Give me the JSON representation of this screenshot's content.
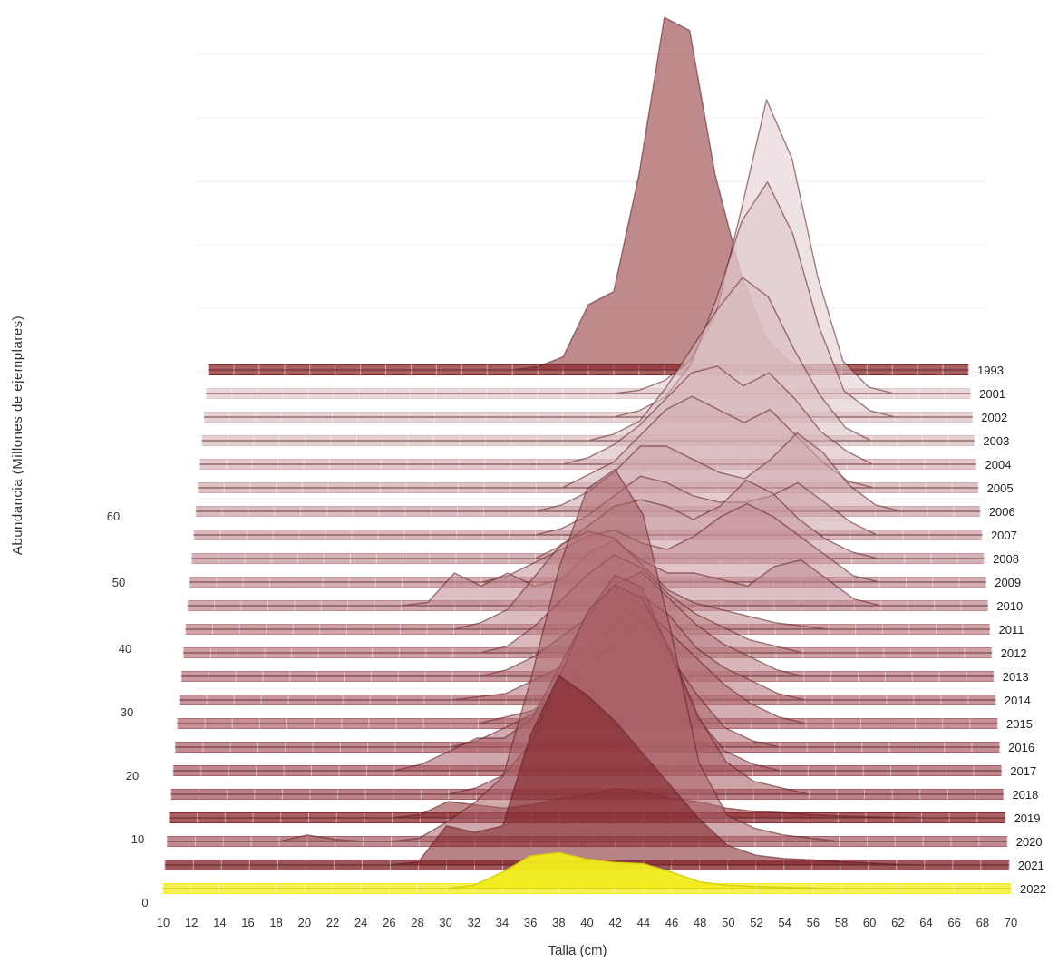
{
  "chart_data": {
    "type": "area",
    "title": "",
    "xlabel": "Talla (cm)",
    "ylabel": "Abundancia  (Millones de ejemplares)",
    "x": [
      10,
      12,
      14,
      16,
      18,
      20,
      22,
      24,
      26,
      28,
      30,
      32,
      34,
      36,
      38,
      40,
      42,
      44,
      46,
      48,
      50,
      52,
      54,
      56,
      58,
      60,
      62,
      64,
      66,
      68,
      70
    ],
    "x_ticks": [
      "10",
      "12",
      "14",
      "16",
      "18",
      "20",
      "22",
      "24",
      "26",
      "28",
      "30",
      "32",
      "34",
      "36",
      "38",
      "40",
      "42",
      "44",
      "46",
      "48",
      "50",
      "52",
      "54",
      "56",
      "58",
      "60",
      "62",
      "64",
      "66",
      "68",
      "70"
    ],
    "y_ticks": [
      "0",
      "10",
      "20",
      "30",
      "40",
      "50",
      "60"
    ],
    "xlim": [
      10,
      70
    ],
    "ylim": [
      0,
      60
    ],
    "grid": false,
    "legend": "none",
    "series": [
      {
        "name": "1993",
        "color": "#8b2a2e",
        "values": [
          0,
          0,
          0,
          0,
          0,
          0,
          0,
          0,
          0,
          0,
          0,
          0,
          0,
          0.5,
          2,
          10,
          12,
          30,
          54,
          52,
          30,
          15,
          5,
          1,
          0,
          0,
          0,
          0,
          0,
          0,
          0
        ]
      },
      {
        "name": "2001",
        "color": "#e2cbcd",
        "values": [
          0,
          0,
          0,
          0,
          0,
          0,
          0,
          0,
          0,
          0,
          0,
          0,
          0,
          0,
          0,
          0,
          0,
          0.5,
          2,
          5,
          12,
          28,
          45,
          36,
          18,
          5,
          1,
          0,
          0,
          0,
          0
        ]
      },
      {
        "name": "2002",
        "color": "#ddc1c4",
        "values": [
          0,
          0,
          0,
          0,
          0,
          0,
          0,
          0,
          0,
          0,
          0,
          0,
          0,
          0,
          0,
          0,
          0,
          1,
          3,
          8,
          18,
          30,
          36,
          28,
          14,
          4,
          1,
          0,
          0,
          0,
          0
        ]
      },
      {
        "name": "2003",
        "color": "#d9bdc0",
        "values": [
          0,
          0,
          0,
          0,
          0,
          0,
          0,
          0,
          0,
          0,
          0,
          0,
          0,
          0,
          0,
          0,
          1,
          3,
          8,
          14,
          20,
          25,
          22,
          14,
          7,
          2,
          0,
          0,
          0,
          0,
          0
        ]
      },
      {
        "name": "2004",
        "color": "#d5b3b7",
        "values": [
          0,
          0,
          0,
          0,
          0,
          0,
          0,
          0,
          0,
          0,
          0,
          0,
          0,
          0,
          0,
          1,
          3,
          6,
          10,
          14,
          15,
          12,
          14,
          10,
          5,
          2,
          0,
          0,
          0,
          0,
          0
        ]
      },
      {
        "name": "2005",
        "color": "#d1adb1",
        "values": [
          0,
          0,
          0,
          0,
          0,
          0,
          0,
          0,
          0,
          0,
          0,
          0,
          0,
          0,
          0,
          2,
          4,
          8,
          12,
          14,
          12,
          10,
          12,
          8,
          4,
          1,
          0,
          0,
          0,
          0,
          0
        ]
      },
      {
        "name": "2006",
        "color": "#cea6ab",
        "values": [
          0,
          0,
          0,
          0,
          0,
          0,
          0,
          0,
          0,
          0,
          0,
          0,
          0,
          0,
          1,
          3,
          6,
          10,
          10,
          8,
          6,
          5,
          8,
          12,
          9,
          4,
          1,
          0,
          0,
          0,
          0
        ]
      },
      {
        "name": "2007",
        "color": "#cb9fa4",
        "values": [
          0,
          0,
          0,
          0,
          0,
          0,
          0,
          0,
          0,
          0,
          0,
          0,
          0,
          0,
          1,
          3,
          6,
          9,
          8,
          6,
          5,
          5,
          6,
          8,
          5,
          2,
          0,
          0,
          0,
          0,
          0
        ]
      },
      {
        "name": "2008",
        "color": "#c7989e",
        "values": [
          0,
          0,
          0,
          0,
          0,
          0,
          0,
          0,
          0,
          0,
          0,
          0,
          0,
          0,
          2,
          5,
          8,
          9,
          8,
          6,
          8,
          12,
          10,
          6,
          3,
          1,
          0,
          0,
          0,
          0,
          0
        ]
      },
      {
        "name": "2009",
        "color": "#c49297",
        "values": [
          0,
          0,
          0,
          0,
          0,
          0,
          0,
          0,
          0,
          0,
          0,
          0,
          1,
          3,
          5,
          7,
          8,
          6,
          5,
          7,
          10,
          12,
          10,
          7,
          4,
          1,
          0,
          0,
          0,
          0,
          0
        ]
      },
      {
        "name": "2010",
        "color": "#c08b91",
        "values": [
          0,
          0,
          0,
          0,
          0,
          0,
          0,
          0,
          0,
          0.5,
          5,
          3,
          5,
          3,
          4,
          8,
          10,
          7,
          5,
          5,
          4,
          3,
          6,
          7,
          4,
          1,
          0,
          0,
          0,
          0,
          0
        ]
      },
      {
        "name": "2011",
        "color": "#bd858b",
        "values": [
          0,
          0,
          0,
          0,
          0,
          0,
          0,
          0,
          0,
          0,
          0,
          1,
          3,
          8,
          13,
          15,
          14,
          10,
          6,
          4,
          3,
          2,
          1,
          0.5,
          0,
          0,
          0,
          0,
          0,
          0,
          0
        ]
      },
      {
        "name": "2012",
        "color": "#ba7f85",
        "values": [
          0,
          0,
          0,
          0,
          0,
          0,
          0,
          0,
          0,
          0,
          0,
          0,
          1,
          4,
          8,
          12,
          15,
          13,
          9,
          6,
          4,
          2,
          1,
          0,
          0,
          0,
          0,
          0,
          0,
          0,
          0
        ]
      },
      {
        "name": "2013",
        "color": "#b6787f",
        "values": [
          0,
          0,
          0,
          0,
          0,
          0,
          0,
          0,
          0,
          0,
          0,
          0,
          1,
          3,
          6,
          9,
          14,
          16,
          12,
          8,
          5,
          3,
          1,
          0,
          0,
          0,
          0,
          0,
          0,
          0,
          0
        ]
      },
      {
        "name": "2014",
        "color": "#b37279",
        "values": [
          0,
          0,
          0,
          0,
          0,
          0,
          0,
          0,
          0,
          0,
          0,
          0.5,
          1,
          3,
          5,
          8,
          12,
          16,
          13,
          8,
          5,
          3,
          1,
          0,
          0,
          0,
          0,
          0,
          0,
          0,
          0
        ]
      },
      {
        "name": "2015",
        "color": "#b06b73",
        "values": [
          0,
          0,
          0,
          0,
          0,
          0,
          0,
          0,
          0,
          0,
          0,
          0,
          1,
          2,
          5,
          10,
          15,
          18,
          14,
          10,
          6,
          3,
          1,
          0,
          0,
          0,
          0,
          0,
          0,
          0,
          0
        ]
      },
      {
        "name": "2016",
        "color": "#ad656d",
        "values": [
          0,
          0,
          0,
          0,
          0,
          0,
          0,
          0,
          0,
          0,
          0,
          1,
          3,
          5,
          8,
          12,
          16,
          20,
          14,
          8,
          3,
          1,
          0,
          0,
          0,
          0,
          0,
          0,
          0,
          0,
          0
        ]
      },
      {
        "name": "2017",
        "color": "#a95e67",
        "values": [
          0,
          0,
          0,
          0,
          0,
          0,
          0,
          0,
          0,
          1,
          3,
          5,
          5,
          8,
          16,
          24,
          30,
          28,
          18,
          8,
          3,
          1,
          0,
          0,
          0,
          0,
          0,
          0,
          0,
          0,
          0
        ]
      },
      {
        "name": "2018",
        "color": "#a65861",
        "values": [
          0,
          0,
          0,
          0,
          0,
          0,
          0,
          0,
          0,
          0,
          0,
          1,
          3,
          8,
          18,
          28,
          32,
          30,
          22,
          12,
          5,
          2,
          1,
          0,
          0,
          0,
          0,
          0,
          0,
          0,
          0
        ]
      },
      {
        "name": "2019",
        "color": "#8b2a2e",
        "values": [
          0,
          0,
          0,
          0,
          0,
          0,
          0,
          0,
          0,
          0.5,
          2.5,
          2,
          1.5,
          2,
          3,
          3.5,
          4.5,
          4,
          3,
          2.5,
          1.5,
          1,
          0.8,
          0.5,
          0.3,
          0.2,
          0.1,
          0,
          0,
          0,
          0
        ]
      },
      {
        "name": "2020",
        "color": "#a9636a",
        "values": [
          0,
          0,
          0,
          0,
          0,
          1,
          0.3,
          0,
          0,
          0.5,
          3,
          6,
          10,
          25,
          42,
          54,
          57,
          50,
          32,
          12,
          4,
          2,
          1,
          0.5,
          0,
          0,
          0,
          0,
          0,
          0,
          0
        ]
      },
      {
        "name": "2021",
        "color": "#7b1d22",
        "values": [
          0,
          0,
          0,
          0,
          0,
          0,
          0,
          0,
          0,
          0.5,
          6,
          5,
          6,
          20,
          29,
          26,
          22,
          17,
          12,
          7,
          3,
          1.5,
          1,
          0.8,
          0.5,
          0.3,
          0.1,
          0,
          0,
          0,
          0
        ]
      },
      {
        "name": "2022",
        "color": "#f2ec1c",
        "values": [
          0,
          0,
          0,
          0,
          0,
          0,
          0,
          0,
          0,
          0,
          0,
          0.5,
          2.5,
          5,
          5.5,
          4.5,
          4,
          3.8,
          2.5,
          1,
          0.5,
          0.3,
          0.2,
          0.1,
          0,
          0,
          0,
          0,
          0,
          0,
          0
        ]
      }
    ]
  }
}
